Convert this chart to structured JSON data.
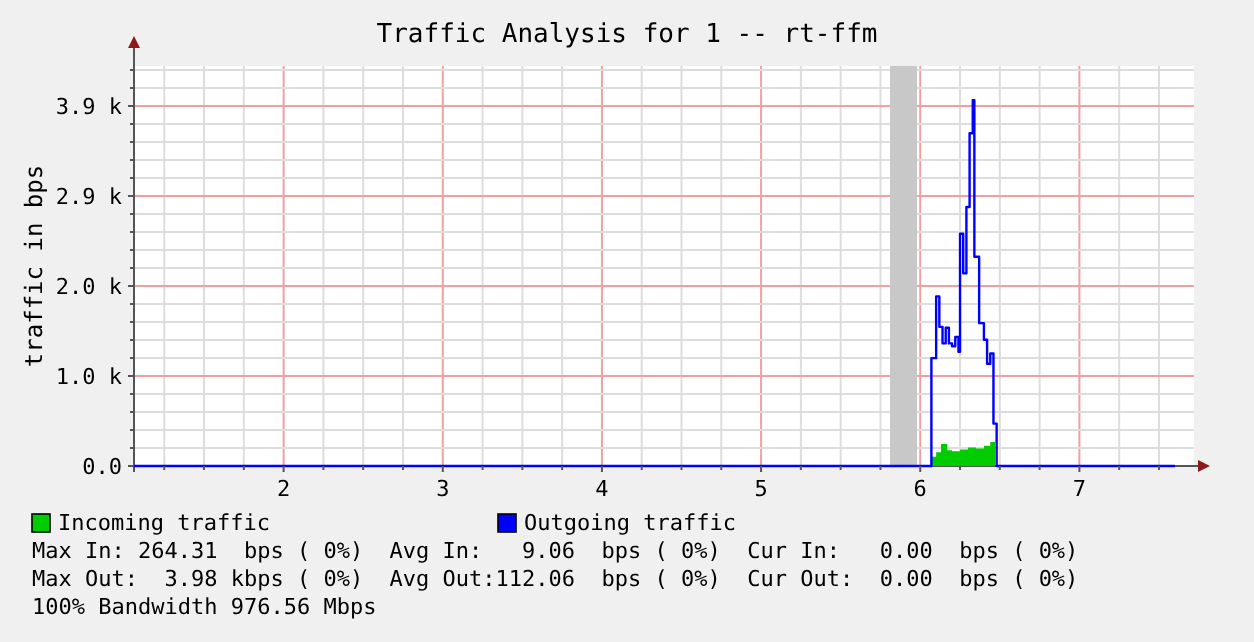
{
  "chart_data": {
    "type": "step",
    "title": "Traffic Analysis for 1 -- rt-ffm",
    "ylabel": "traffic in bps",
    "xlim": [
      1.06,
      7.72
    ],
    "xticks": [
      {
        "value": 1.25,
        "label": null
      },
      {
        "value": 1.5,
        "label": null
      },
      {
        "value": 1.75,
        "label": null
      },
      2,
      {
        "value": 2.25,
        "label": null
      },
      {
        "value": 2.5,
        "label": null
      },
      {
        "value": 2.75,
        "label": null
      },
      3,
      {
        "value": 3.25,
        "label": null
      },
      {
        "value": 3.5,
        "label": null
      },
      {
        "value": 3.75,
        "label": null
      },
      4,
      {
        "value": 4.25,
        "label": null
      },
      {
        "value": 4.5,
        "label": null
      },
      {
        "value": 4.75,
        "label": null
      },
      5,
      {
        "value": 5.25,
        "label": null
      },
      {
        "value": 5.5,
        "label": null
      },
      {
        "value": 5.75,
        "label": null
      },
      6,
      {
        "value": 6.25,
        "label": null
      },
      {
        "value": 6.5,
        "label": null
      },
      {
        "value": 6.75,
        "label": null
      },
      7,
      {
        "value": 7.25,
        "label": null
      },
      {
        "value": 7.5,
        "label": null
      }
    ],
    "ylim": [
      0,
      4340
    ],
    "yticks": [
      {
        "value": 0,
        "label": "0.0"
      },
      {
        "value": 195.31,
        "label": null
      },
      {
        "value": 390.62,
        "label": null
      },
      {
        "value": 585.94,
        "label": null
      },
      {
        "value": 781.25,
        "label": null
      },
      {
        "value": 976.56,
        "label": "1.0 k"
      },
      {
        "value": 1171.88,
        "label": null
      },
      {
        "value": 1367.19,
        "label": null
      },
      {
        "value": 1562.5,
        "label": null
      },
      {
        "value": 1757.81,
        "label": null
      },
      {
        "value": 1953.12,
        "label": "2.0 k"
      },
      {
        "value": 2148.44,
        "label": null
      },
      {
        "value": 2343.75,
        "label": null
      },
      {
        "value": 2539.06,
        "label": null
      },
      {
        "value": 2734.38,
        "label": null
      },
      {
        "value": 2929.69,
        "label": "2.9 k"
      },
      {
        "value": 3125,
        "label": null
      },
      {
        "value": 3320.31,
        "label": null
      },
      {
        "value": 3515.62,
        "label": null
      },
      {
        "value": 3710.94,
        "label": null
      },
      {
        "value": 3906.25,
        "label": "3.9 k"
      },
      {
        "value": 4101.56,
        "label": null
      },
      {
        "value": 4296.88,
        "label": null
      }
    ],
    "grid": true,
    "legend": "bottom",
    "bands": [
      {
        "axis": "x",
        "from": 5.81,
        "to": 5.98,
        "label": null,
        "color": "#c8c8c8"
      }
    ],
    "series": [
      {
        "name": "Incoming traffic",
        "type": "area",
        "color": "#00cc00",
        "x": [
          1.06,
          6.07,
          6.1,
          6.13,
          6.17,
          6.2,
          6.25,
          6.3,
          6.35,
          6.4,
          6.44,
          6.47,
          7.6
        ],
        "values": [
          0,
          100,
          150,
          240,
          170,
          160,
          180,
          200,
          190,
          220,
          260,
          0,
          0
        ]
      },
      {
        "name": "Outgoing traffic",
        "color": "#0000ff",
        "x": [
          1.06,
          6.07,
          6.1,
          6.12,
          6.14,
          6.16,
          6.18,
          6.2,
          6.22,
          6.24,
          6.25,
          6.27,
          6.29,
          6.31,
          6.33,
          6.34,
          6.37,
          6.4,
          6.42,
          6.44,
          6.46,
          6.48,
          7.6
        ],
        "values": [
          0,
          1170,
          1840,
          1510,
          1330,
          1500,
          1330,
          1300,
          1400,
          1240,
          2520,
          2090,
          2810,
          3610,
          3970,
          2270,
          1550,
          1370,
          1110,
          1220,
          460,
          0,
          0
        ]
      }
    ],
    "annotations": [
      "Max In: 264.31  bps ( 0%)  Avg In:   9.06  bps ( 0%)  Cur In:   0.00  bps ( 0%)",
      "Max Out:  3.98 kbps ( 0%)  Avg Out:112.06  bps ( 0%)  Cur Out:  0.00  bps ( 0%)",
      "100% Bandwidth 976.56 Mbps"
    ]
  }
}
